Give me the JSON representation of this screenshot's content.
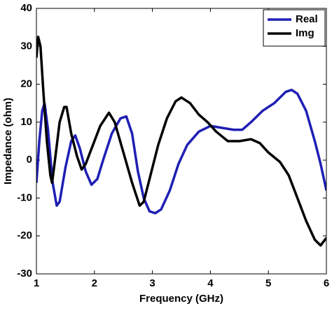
{
  "chart_data": {
    "type": "line",
    "xlabel": "Frequency (GHz)",
    "ylabel": "Impedance (ohm)",
    "xlim": [
      1,
      6
    ],
    "xticks": [
      1,
      2,
      3,
      4,
      5,
      6
    ],
    "ylim": [
      -30,
      40
    ],
    "yticks": [
      -30,
      -20,
      -10,
      0,
      10,
      20,
      30,
      40
    ],
    "grid": false,
    "legend": "upper right",
    "series": [
      {
        "name": "Real",
        "color": "#1f1fb4",
        "x": [
          1.0,
          1.05,
          1.1,
          1.14,
          1.2,
          1.28,
          1.35,
          1.4,
          1.5,
          1.6,
          1.67,
          1.75,
          1.85,
          1.95,
          2.05,
          2.15,
          2.3,
          2.45,
          2.55,
          2.65,
          2.75,
          2.85,
          2.95,
          3.05,
          3.15,
          3.3,
          3.45,
          3.6,
          3.8,
          4.0,
          4.2,
          4.4,
          4.55,
          4.7,
          4.9,
          5.1,
          5.3,
          5.4,
          5.5,
          5.65,
          5.8,
          5.9,
          6.0
        ],
        "values": [
          -6,
          5,
          13,
          15,
          8,
          -6,
          -12,
          -11,
          -2,
          5,
          6.5,
          3,
          -3,
          -6.5,
          -5,
          0,
          7,
          11,
          11.5,
          7,
          -3,
          -10,
          -13.5,
          -14,
          -13,
          -8,
          -1,
          4,
          7.5,
          9,
          8.5,
          8,
          8,
          10,
          13,
          15,
          18,
          18.5,
          17.5,
          13,
          5,
          -1,
          -8
        ]
      },
      {
        "name": "Img",
        "color": "#000000",
        "x": [
          1.0,
          1.03,
          1.07,
          1.12,
          1.18,
          1.24,
          1.27,
          1.32,
          1.4,
          1.48,
          1.52,
          1.6,
          1.7,
          1.78,
          1.85,
          1.95,
          2.1,
          2.25,
          2.35,
          2.5,
          2.65,
          2.78,
          2.85,
          2.95,
          3.1,
          3.25,
          3.4,
          3.5,
          3.65,
          3.8,
          3.95,
          4.1,
          4.3,
          4.5,
          4.7,
          4.85,
          5.0,
          5.2,
          5.35,
          5.5,
          5.65,
          5.8,
          5.9,
          6.0
        ],
        "values": [
          27,
          32.5,
          30,
          18,
          5,
          -4,
          -6,
          0,
          10,
          14,
          14,
          7,
          1,
          -2.5,
          -1,
          3,
          9,
          12.5,
          10,
          2,
          -6,
          -12,
          -11,
          -5,
          4,
          11,
          15.5,
          16.5,
          15,
          12,
          10,
          7.5,
          5,
          5,
          5.5,
          4.5,
          2,
          -0.5,
          -4,
          -10,
          -16,
          -21,
          -22.5,
          -20.5
        ]
      }
    ]
  }
}
